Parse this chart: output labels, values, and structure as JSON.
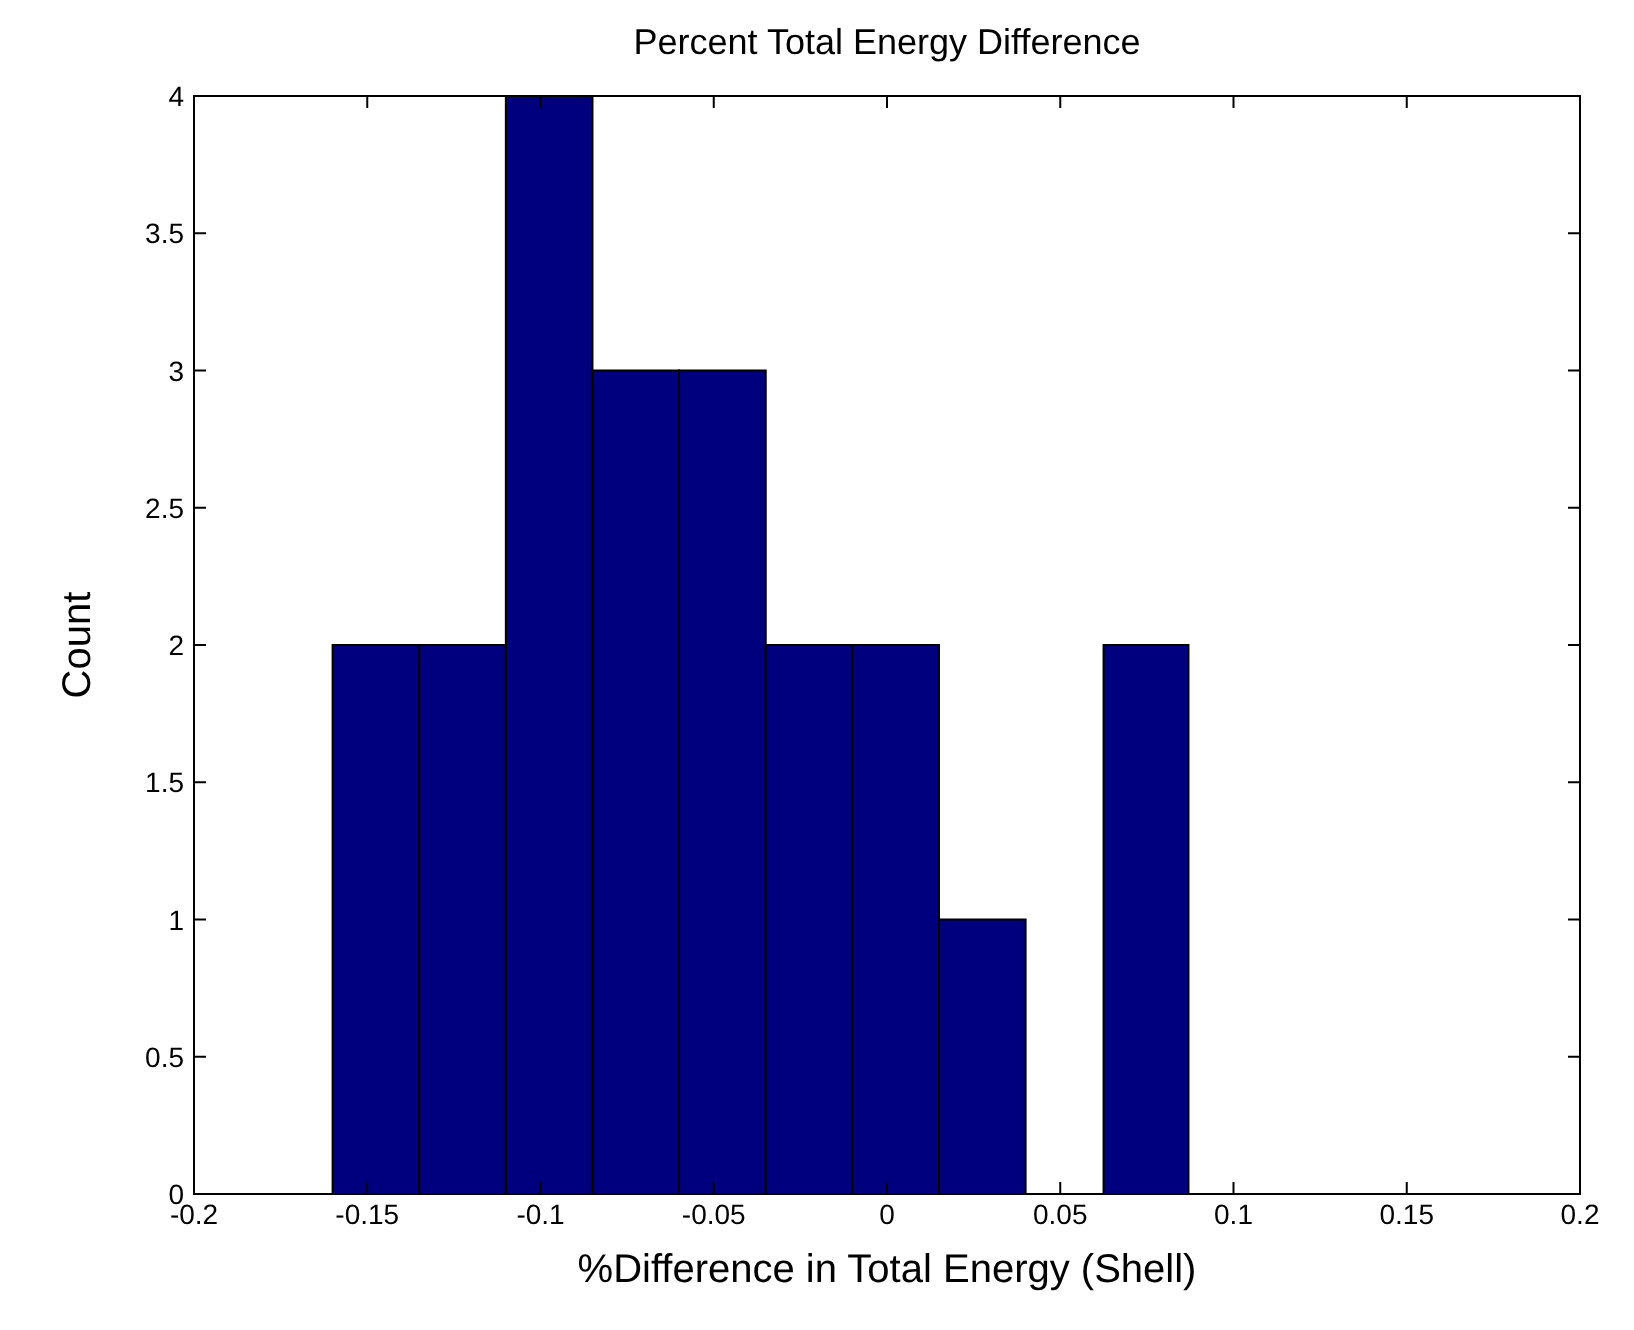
{
  "chart_data": {
    "type": "histogram",
    "title": "Percent Total Energy Difference",
    "xlabel": "%Difference in Total Energy (Shell)",
    "ylabel": "Count",
    "bins": [
      -0.16,
      -0.135,
      -0.11,
      -0.085,
      -0.06,
      -0.035,
      -0.01,
      0.015,
      0.04,
      0.0625,
      0.087
    ],
    "values": [
      2,
      2,
      4,
      3,
      3,
      2,
      2,
      1,
      0,
      2
    ],
    "color": "#00007f",
    "xlim": [
      -0.2,
      0.2
    ],
    "xticks": [
      -0.2,
      -0.15,
      -0.1,
      -0.05,
      0,
      0.05,
      0.1,
      0.15,
      0.2
    ],
    "ylim": [
      0,
      4
    ],
    "yticks": [
      0,
      0.5,
      1,
      1.5,
      2,
      2.5,
      3,
      3.5,
      4
    ],
    "grid": false
  }
}
